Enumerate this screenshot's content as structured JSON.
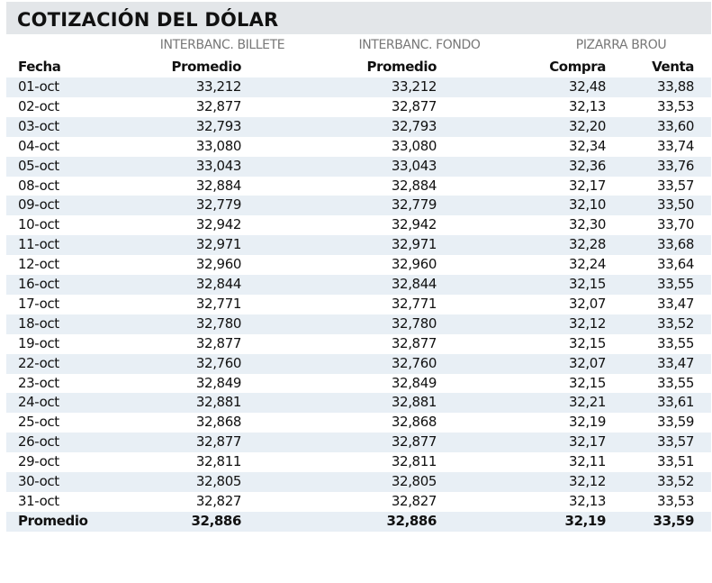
{
  "header": {
    "title": "COTIZACIÓN DEL DÓLAR"
  },
  "table": {
    "groups": [
      "INTERBANC. BILLETE",
      "INTERBANC. FONDO",
      "PIZARRA BROU"
    ],
    "columns": [
      "Fecha",
      "Promedio",
      "Promedio",
      "Compra",
      "Venta"
    ],
    "rows": [
      [
        "01-oct",
        "33,212",
        "33,212",
        "32,48",
        "33,88"
      ],
      [
        "02-oct",
        "32,877",
        "32,877",
        "32,13",
        "33,53"
      ],
      [
        "03-oct",
        "32,793",
        "32,793",
        "32,20",
        "33,60"
      ],
      [
        "04-oct",
        "33,080",
        "33,080",
        "32,34",
        "33,74"
      ],
      [
        "05-oct",
        "33,043",
        "33,043",
        "32,36",
        "33,76"
      ],
      [
        "08-oct",
        "32,884",
        "32,884",
        "32,17",
        "33,57"
      ],
      [
        "09-oct",
        "32,779",
        "32,779",
        "32,10",
        "33,50"
      ],
      [
        "10-oct",
        "32,942",
        "32,942",
        "32,30",
        "33,70"
      ],
      [
        "11-oct",
        "32,971",
        "32,971",
        "32,28",
        "33,68"
      ],
      [
        "12-oct",
        "32,960",
        "32,960",
        "32,24",
        "33,64"
      ],
      [
        "16-oct",
        "32,844",
        "32,844",
        "32,15",
        "33,55"
      ],
      [
        "17-oct",
        "32,771",
        "32,771",
        "32,07",
        "33,47"
      ],
      [
        "18-oct",
        "32,780",
        "32,780",
        "32,12",
        "33,52"
      ],
      [
        "19-oct",
        "32,877",
        "32,877",
        "32,15",
        "33,55"
      ],
      [
        "22-oct",
        "32,760",
        "32,760",
        "32,07",
        "33,47"
      ],
      [
        "23-oct",
        "32,849",
        "32,849",
        "32,15",
        "33,55"
      ],
      [
        "24-oct",
        "32,881",
        "32,881",
        "32,21",
        "33,61"
      ],
      [
        "25-oct",
        "32,868",
        "32,868",
        "32,19",
        "33,59"
      ],
      [
        "26-oct",
        "32,877",
        "32,877",
        "32,17",
        "33,57"
      ],
      [
        "29-oct",
        "32,811",
        "32,811",
        "32,11",
        "33,51"
      ],
      [
        "30-oct",
        "32,805",
        "32,805",
        "32,12",
        "33,52"
      ],
      [
        "31-oct",
        "32,827",
        "32,827",
        "32,13",
        "33,53"
      ]
    ],
    "footer": [
      "Promedio",
      "32,886",
      "32,886",
      "32,19",
      "33,59"
    ]
  }
}
